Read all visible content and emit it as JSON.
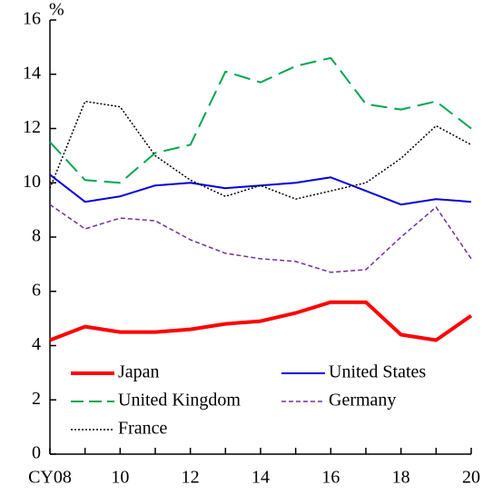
{
  "chart_data": {
    "type": "line",
    "y_unit_label": "%",
    "categories": [
      "CY08",
      null,
      "10",
      null,
      "12",
      null,
      "14",
      null,
      "16",
      null,
      "18",
      null,
      "20"
    ],
    "ylim": [
      0,
      16
    ],
    "yticks": [
      0,
      2,
      4,
      6,
      8,
      10,
      12,
      14,
      16
    ],
    "grid": false,
    "legend": "lower center",
    "series": [
      {
        "name": "Japan",
        "color": "#ff0000",
        "style": "solid",
        "width": 4,
        "values": [
          4.2,
          4.7,
          4.5,
          4.5,
          4.6,
          4.8,
          4.9,
          5.2,
          5.6,
          5.6,
          4.4,
          4.2,
          5.1
        ]
      },
      {
        "name": "United States",
        "color": "#0000dd",
        "style": "solid",
        "width": 2,
        "values": [
          10.3,
          9.3,
          9.5,
          9.9,
          10.0,
          9.8,
          9.9,
          10.0,
          10.2,
          9.7,
          9.2,
          9.4,
          9.3
        ]
      },
      {
        "name": "United Kingdom",
        "color": "#00a650",
        "style": "dashed",
        "width": 2,
        "values": [
          11.5,
          10.1,
          10.0,
          11.1,
          11.4,
          14.1,
          13.7,
          14.3,
          14.6,
          12.9,
          12.7,
          13.0,
          12.0
        ]
      },
      {
        "name": "Germany",
        "color": "#7030a0",
        "style": "dashed-fine",
        "width": 1.5,
        "values": [
          9.2,
          8.3,
          8.7,
          8.6,
          7.9,
          7.4,
          7.2,
          7.1,
          6.7,
          6.8,
          8.0,
          9.1,
          7.2
        ]
      },
      {
        "name": "France",
        "color": "#000000",
        "style": "dotted",
        "width": 1.5,
        "values": [
          9.8,
          13.0,
          12.8,
          11.0,
          10.1,
          9.5,
          9.9,
          9.4,
          9.7,
          10.0,
          10.9,
          12.1,
          11.4
        ]
      }
    ]
  }
}
